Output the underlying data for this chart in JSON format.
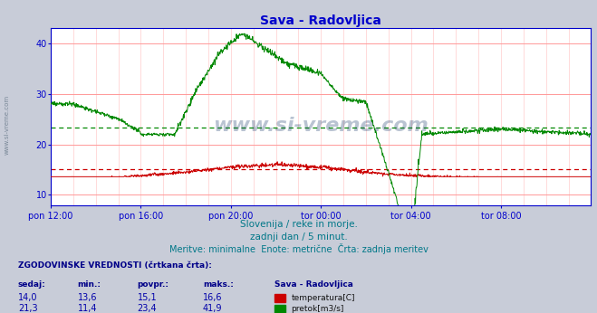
{
  "title": "Sava - Radovljica",
  "title_color": "#0000cc",
  "bg_color": "#c8ccd8",
  "plot_bg_color": "#ffffff",
  "axis_color": "#0000cc",
  "grid_color_h": "#ff9999",
  "grid_color_v": "#ffcccc",
  "subtitle_lines": [
    "Slovenija / reke in morje.",
    "zadnji dan / 5 minut.",
    "Meritve: minimalne  Enote: metrične  Črta: zadnja meritev"
  ],
  "xlabel_ticks": [
    "pon 12:00",
    "pon 16:00",
    "pon 20:00",
    "tor 00:00",
    "tor 04:00",
    "tor 08:00"
  ],
  "xlabel_ticks_pos": [
    0,
    240,
    480,
    720,
    960,
    1200
  ],
  "total_points": 1440,
  "ylim_main": [
    8,
    43
  ],
  "yticks_main": [
    10,
    20,
    30,
    40
  ],
  "temp_color": "#cc0000",
  "flow_color": "#008800",
  "temp_avg": 15.1,
  "flow_avg": 23.4,
  "temp_min": 13.6,
  "temp_max": 16.6,
  "temp_cur": 14.0,
  "flow_min": 11.4,
  "flow_max": 41.9,
  "flow_cur": 21.3,
  "watermark": "www.si-vreme.com",
  "watermark_color": "#1a3a6a",
  "footer_color": "#007788",
  "table_header_color": "#000088",
  "table_data_color": "#0000aa",
  "sidebar_color": "#667788"
}
